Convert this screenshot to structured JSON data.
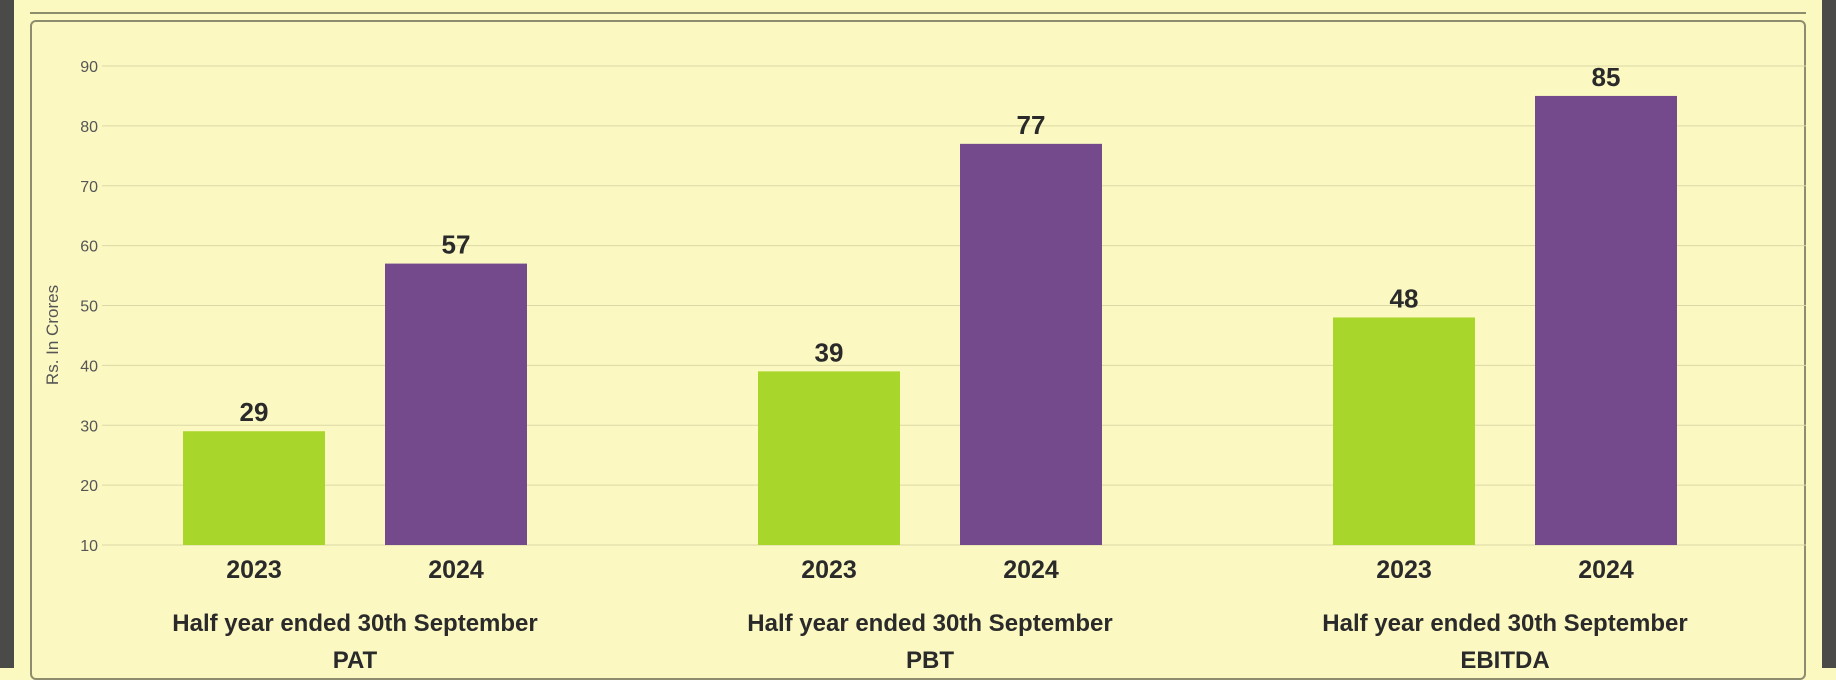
{
  "chart_data": {
    "type": "bar",
    "ylabel": "Rs. In Crores",
    "ylim": [
      10,
      90
    ],
    "yticks": [
      10,
      20,
      30,
      40,
      50,
      60,
      70,
      80,
      90
    ],
    "grid": true,
    "colors": {
      "2023": "#a8d62a",
      "2024": "#744a8c"
    },
    "groups": [
      {
        "label_line1": "Half year ended 30th September",
        "label_line2": "PAT",
        "bars": [
          {
            "category": "2023",
            "value": 29,
            "label": "29"
          },
          {
            "category": "2024",
            "value": 57,
            "label": "57"
          }
        ]
      },
      {
        "label_line1": "Half year ended 30th September",
        "label_line2": "PBT",
        "bars": [
          {
            "category": "2023",
            "value": 39,
            "label": "39"
          },
          {
            "category": "2024",
            "value": 77,
            "label": "77"
          }
        ]
      },
      {
        "label_line1": "Half year ended 30th September",
        "label_line2": "EBITDA",
        "bars": [
          {
            "category": "2023",
            "value": 48,
            "label": "48"
          },
          {
            "category": "2024",
            "value": 85,
            "label": "85"
          }
        ]
      }
    ]
  }
}
